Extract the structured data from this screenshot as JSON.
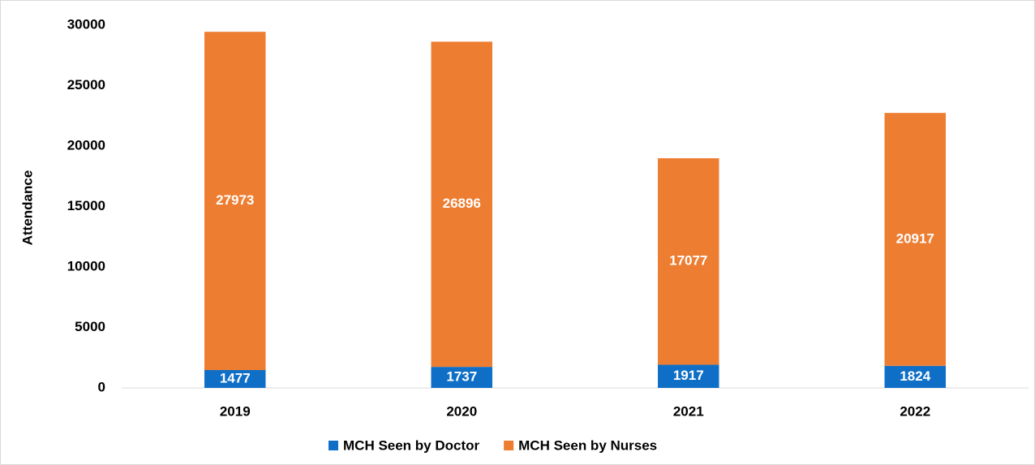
{
  "chart_data": {
    "type": "stacked_bar",
    "y_label": "Attendance",
    "categories": [
      "2019",
      "2020",
      "2021",
      "2022"
    ],
    "series": [
      {
        "name": "MCH Seen by Doctor",
        "color": "#0f6fc6",
        "values": [
          1477,
          1737,
          1917,
          1824
        ]
      },
      {
        "name": "MCH Seen by Nurses",
        "color": "#ed7d31",
        "values": [
          27973,
          26896,
          17077,
          20917
        ]
      }
    ],
    "ylim": [
      0,
      30000
    ],
    "yticks": [
      0,
      5000,
      10000,
      15000,
      20000,
      25000,
      30000
    ],
    "grid": false,
    "legend": "bottom"
  }
}
